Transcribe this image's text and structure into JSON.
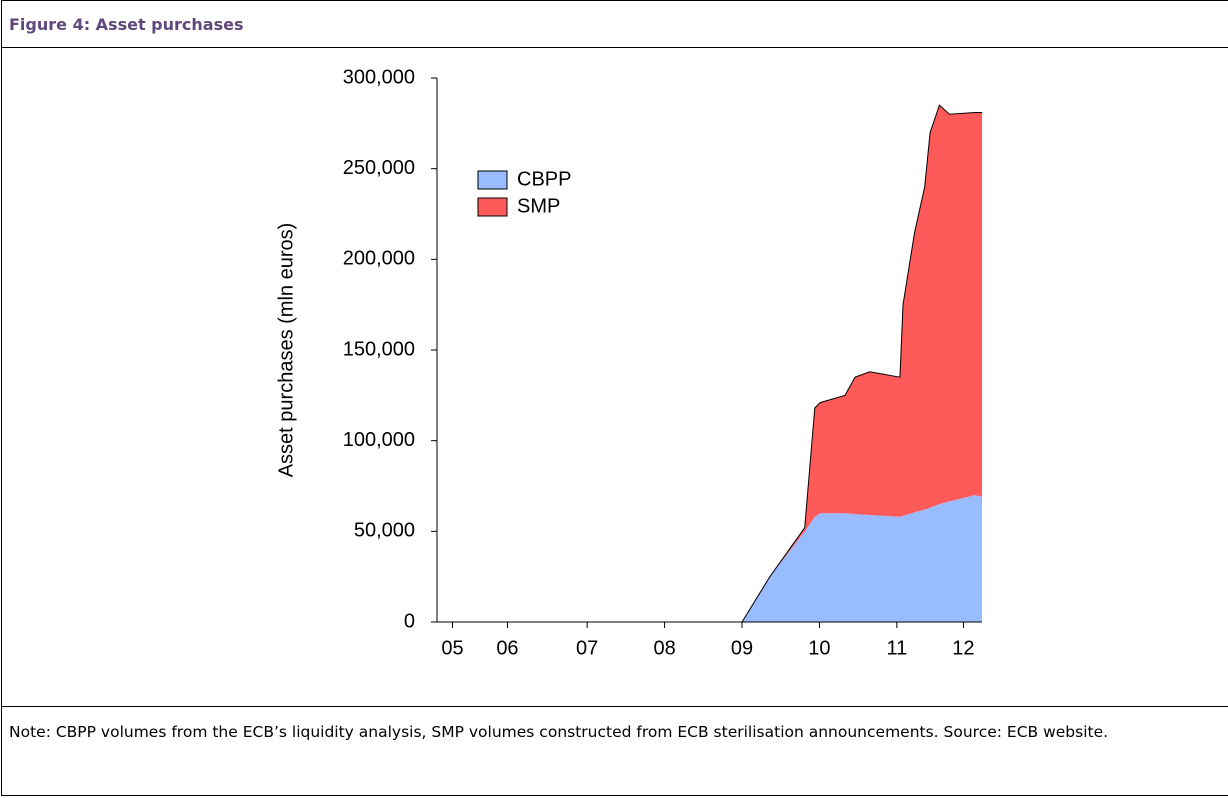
{
  "header": {
    "title": "Figure 4: Asset purchases"
  },
  "chart_data": {
    "type": "stacked-area",
    "y_label": "Asset purchases (mln euros)",
    "x": [
      2005.56,
      2009.5,
      2009.86,
      2010.31,
      2010.44,
      2010.51,
      2010.83,
      2010.96,
      2011.15,
      2011.54,
      2011.58,
      2011.73,
      2011.86,
      2011.93,
      2012.05,
      2012.18,
      2012.51,
      2012.6
    ],
    "series": [
      {
        "name": "CBPP",
        "color": "#99bbff",
        "values": [
          0,
          0,
          25000,
          50000,
          58000,
          60000,
          60000,
          59500,
          59000,
          58000,
          58500,
          60500,
          62000,
          63000,
          65000,
          66500,
          70000,
          69000
        ]
      },
      {
        "name": "SMP",
        "color": "#ff5a5a",
        "values": [
          0,
          0,
          0,
          2000,
          60000,
          61000,
          65000,
          75500,
          79000,
          77000,
          116500,
          154500,
          178000,
          207000,
          220000,
          213500,
          211000,
          212000
        ]
      }
    ],
    "xlim": [
      2005.56,
      2012.6
    ],
    "xticks": [
      {
        "value": 2005.76,
        "label": "05"
      },
      {
        "value": 2006.47,
        "label": "06"
      },
      {
        "value": 2007.5,
        "label": "07"
      },
      {
        "value": 2008.5,
        "label": "08"
      },
      {
        "value": 2009.5,
        "label": "09"
      },
      {
        "value": 2010.5,
        "label": "10"
      },
      {
        "value": 2011.5,
        "label": "11"
      },
      {
        "value": 2012.36,
        "label": "12"
      }
    ],
    "ylim": [
      0,
      300000
    ],
    "yticks": [
      0,
      {
        "value": 50000,
        "label": "50,000"
      },
      {
        "value": 100000,
        "label": "100,000"
      },
      {
        "value": 150000,
        "label": "150,000"
      },
      {
        "value": 200000,
        "label": "200,000"
      },
      {
        "value": 250000,
        "label": "250,000"
      },
      {
        "value": 300000,
        "label": "300,000"
      }
    ],
    "legend": "upper-left"
  },
  "note": {
    "text": "Note: CBPP volumes from the ECB’s liquidity analysis, SMP volumes constructed from ECB sterilisation announcements. Source: ECB website."
  }
}
